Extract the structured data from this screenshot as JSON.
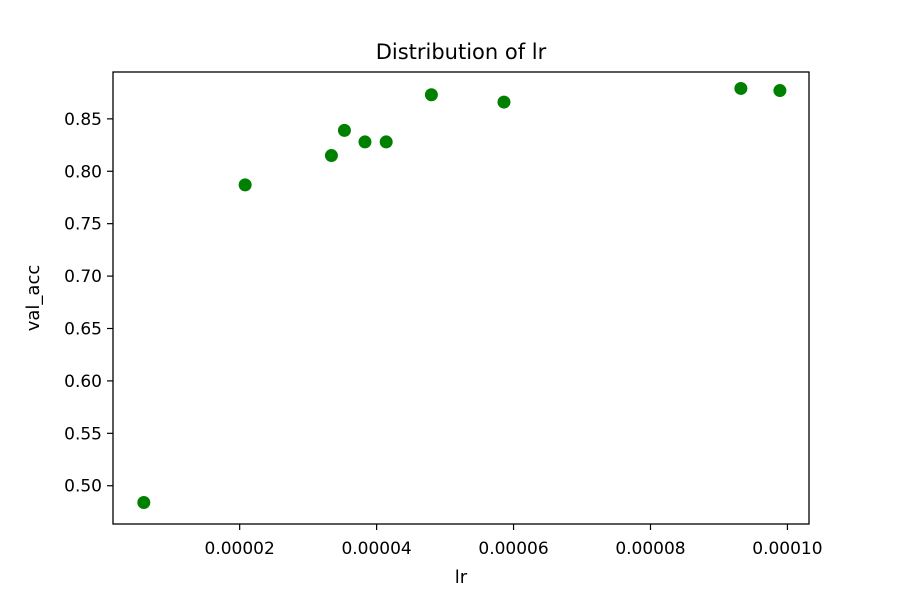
{
  "chart_data": {
    "type": "scatter",
    "title": "Distribution of lr",
    "xlabel": "lr",
    "ylabel": "val_acc",
    "xlim": [
      1.5e-06,
      0.00010315
    ],
    "ylim": [
      0.4635,
      0.8947
    ],
    "x_ticks": [
      2e-05,
      4e-05,
      6e-05,
      8e-05,
      0.0001
    ],
    "x_tick_labels": [
      "0.00002",
      "0.00004",
      "0.00006",
      "0.00008",
      "0.00010"
    ],
    "y_ticks": [
      0.5,
      0.55,
      0.6,
      0.65,
      0.7,
      0.75,
      0.8,
      0.85
    ],
    "y_tick_labels": [
      "0.50",
      "0.55",
      "0.60",
      "0.65",
      "0.70",
      "0.75",
      "0.80",
      "0.85"
    ],
    "grid": false,
    "marker_color": "#008000",
    "points": [
      {
        "x": 6e-06,
        "y": 0.484
      },
      {
        "x": 2.08e-05,
        "y": 0.787
      },
      {
        "x": 3.34e-05,
        "y": 0.815
      },
      {
        "x": 3.53e-05,
        "y": 0.839
      },
      {
        "x": 3.83e-05,
        "y": 0.828
      },
      {
        "x": 4.14e-05,
        "y": 0.828
      },
      {
        "x": 4.8e-05,
        "y": 0.873
      },
      {
        "x": 5.86e-05,
        "y": 0.866
      },
      {
        "x": 9.32e-05,
        "y": 0.879
      },
      {
        "x": 9.89e-05,
        "y": 0.877
      }
    ]
  }
}
